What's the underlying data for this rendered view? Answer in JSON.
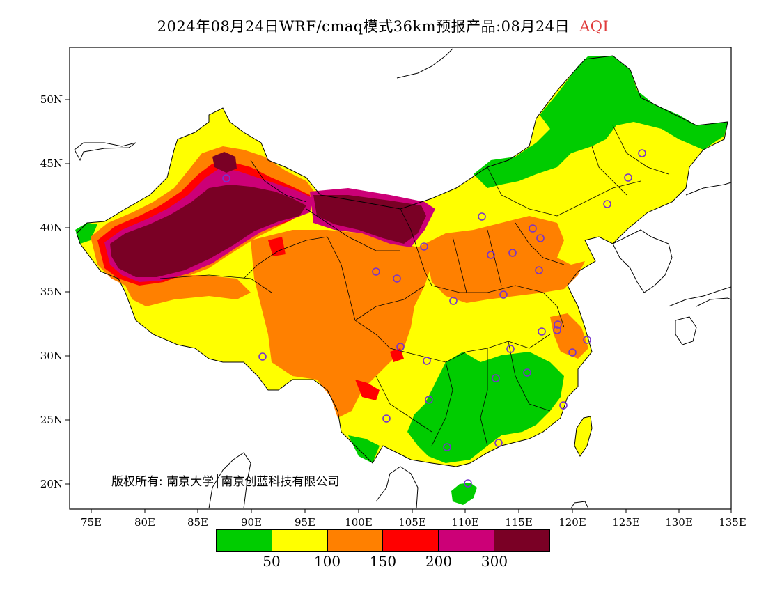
{
  "title": {
    "main": "2024年08月24日WRF/cmaq模式36km预报产品:08月24日",
    "variable": "AQI",
    "variable_color": "#e03c3c"
  },
  "axes": {
    "x_ticks": [
      "75E",
      "80E",
      "85E",
      "90E",
      "95E",
      "100E",
      "105E",
      "110E",
      "115E",
      "120E",
      "125E",
      "130E",
      "135E"
    ],
    "y_ticks": [
      "50N",
      "45N",
      "40N",
      "35N",
      "30N",
      "25N",
      "20N"
    ]
  },
  "copyright": "版权所有: 南京大学│南京创蓝科技有限公司",
  "legend": {
    "colors": [
      "#00cc00",
      "#ffff00",
      "#ff8000",
      "#ff0000",
      "#cc0077",
      "#7a0025"
    ],
    "labels": [
      "50",
      "100",
      "150",
      "200",
      "300"
    ]
  },
  "stations_color": "#7733cc",
  "map_colors": {
    "ocean": "#ffffff",
    "green": "#00cc00",
    "yellow": "#ffff00",
    "orange": "#ff8000",
    "red": "#ff0000",
    "magenta": "#cc0077",
    "maroon": "#7a0025"
  }
}
